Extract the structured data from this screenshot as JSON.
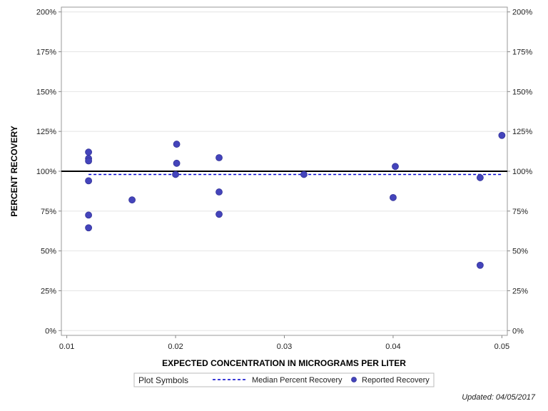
{
  "chart_data": {
    "type": "scatter",
    "xlabel": "EXPECTED CONCENTRATION IN MICROGRAMS PER LITER",
    "ylabel": "PERCENT RECOVERY",
    "xlim": [
      0.0095,
      0.0505
    ],
    "ylim": [
      -0.03,
      2.03
    ],
    "x_ticks": [
      0.01,
      0.02,
      0.03,
      0.04,
      0.05
    ],
    "x_tick_labels": [
      "0.01",
      "0.02",
      "0.03",
      "0.04",
      "0.05"
    ],
    "y_ticks": [
      0,
      0.25,
      0.5,
      0.75,
      1.0,
      1.25,
      1.5,
      1.75,
      2.0
    ],
    "y_tick_labels": [
      "0%",
      "25%",
      "50%",
      "75%",
      "100%",
      "125%",
      "150%",
      "175%",
      "200%"
    ],
    "grid": true,
    "reference_line": {
      "y": 1.0,
      "color": "#000000"
    },
    "median_line": {
      "y": 0.98,
      "color": "#0000cc",
      "style": "dashed"
    },
    "series": [
      {
        "name": "Reported Recovery",
        "color": "#4444bb",
        "points": [
          {
            "x": 0.012,
            "y": 1.12
          },
          {
            "x": 0.012,
            "y": 1.08
          },
          {
            "x": 0.012,
            "y": 1.065
          },
          {
            "x": 0.012,
            "y": 0.94
          },
          {
            "x": 0.012,
            "y": 0.725
          },
          {
            "x": 0.012,
            "y": 0.645
          },
          {
            "x": 0.016,
            "y": 0.82
          },
          {
            "x": 0.0201,
            "y": 1.17
          },
          {
            "x": 0.0201,
            "y": 1.05
          },
          {
            "x": 0.02,
            "y": 0.98
          },
          {
            "x": 0.024,
            "y": 1.085
          },
          {
            "x": 0.024,
            "y": 0.87
          },
          {
            "x": 0.024,
            "y": 0.73
          },
          {
            "x": 0.0318,
            "y": 0.98
          },
          {
            "x": 0.0402,
            "y": 1.03
          },
          {
            "x": 0.04,
            "y": 0.835
          },
          {
            "x": 0.048,
            "y": 0.96
          },
          {
            "x": 0.048,
            "y": 0.41
          },
          {
            "x": 0.05,
            "y": 1.225
          }
        ]
      }
    ],
    "legend": {
      "placement": "bottom-center",
      "title": "Plot Symbols",
      "entries": [
        {
          "label": "Median Percent Recovery",
          "symbol": "dashed-line",
          "color": "#0000cc"
        },
        {
          "label": "Reported Recovery",
          "symbol": "circle",
          "color": "#4444bb"
        }
      ]
    }
  },
  "footer": {
    "updated": "Updated: 04/05/2017"
  }
}
